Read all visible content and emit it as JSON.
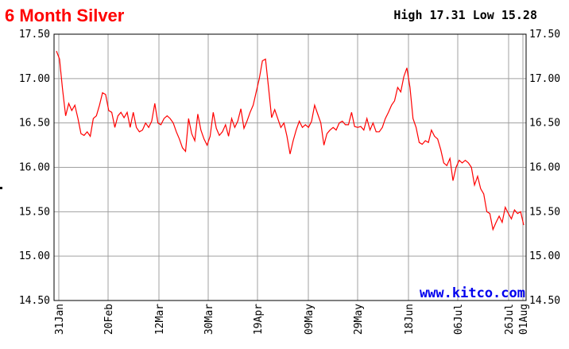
{
  "header": {
    "title": "6 Month Silver",
    "high_low": "High 17.31 Low 15.28"
  },
  "brand": "www.kitco.com",
  "colors": {
    "title": "#ff0000",
    "line": "#ff0000",
    "grid": "#a0a0a0",
    "brand": "#0000ee",
    "frame": "#000000"
  },
  "chart_data": {
    "type": "line",
    "title": "6 Month Silver",
    "grid": true,
    "ylim": [
      14.5,
      17.5
    ],
    "yticks": [
      "17.50",
      "17.00",
      "16.50",
      "16.00",
      "15.50",
      "15.00",
      "14.50"
    ],
    "xticks": [
      "31Jan",
      "20Feb",
      "12Mar",
      "30Mar",
      "19Apr",
      "09May",
      "29May",
      "18Jun",
      "06Jul",
      "26Jul",
      "01Aug"
    ],
    "high": 17.31,
    "low": 15.28,
    "series": [
      {
        "values": [
          17.31,
          17.22,
          16.88,
          16.58,
          16.72,
          16.64,
          16.7,
          16.55,
          16.38,
          16.36,
          16.4,
          16.35,
          16.55,
          16.58,
          16.7,
          16.84,
          16.82,
          16.64,
          16.62,
          16.45,
          16.58,
          16.62,
          16.56,
          16.62,
          16.45,
          16.62,
          16.45,
          16.4,
          16.42,
          16.5,
          16.45,
          16.52,
          16.72,
          16.5,
          16.48,
          16.55,
          16.58,
          16.55,
          16.5,
          16.4,
          16.32,
          16.22,
          16.18,
          16.55,
          16.38,
          16.3,
          16.6,
          16.42,
          16.32,
          16.25,
          16.35,
          16.62,
          16.44,
          16.36,
          16.4,
          16.48,
          16.35,
          16.55,
          16.45,
          16.52,
          16.66,
          16.44,
          16.52,
          16.62,
          16.7,
          16.85,
          17.0,
          17.2,
          17.22,
          16.9,
          16.56,
          16.65,
          16.55,
          16.45,
          16.5,
          16.35,
          16.15,
          16.3,
          16.42,
          16.52,
          16.45,
          16.48,
          16.45,
          16.52,
          16.7,
          16.6,
          16.5,
          16.25,
          16.38,
          16.42,
          16.45,
          16.42,
          16.5,
          16.52,
          16.48,
          16.48,
          16.62,
          16.46,
          16.45,
          16.46,
          16.42,
          16.55,
          16.42,
          16.5,
          16.4,
          16.4,
          16.45,
          16.55,
          16.62,
          16.7,
          16.75,
          16.9,
          16.85,
          17.02,
          17.12,
          16.9,
          16.55,
          16.45,
          16.28,
          16.26,
          16.3,
          16.28,
          16.42,
          16.35,
          16.32,
          16.2,
          16.05,
          16.02,
          16.1,
          15.85,
          16.0,
          16.08,
          16.05,
          16.08,
          16.05,
          16.0,
          15.8,
          15.9,
          15.76,
          15.7,
          15.5,
          15.48,
          15.3,
          15.38,
          15.45,
          15.38,
          15.55,
          15.48,
          15.42,
          15.52,
          15.48,
          15.5,
          15.35
        ]
      }
    ]
  }
}
